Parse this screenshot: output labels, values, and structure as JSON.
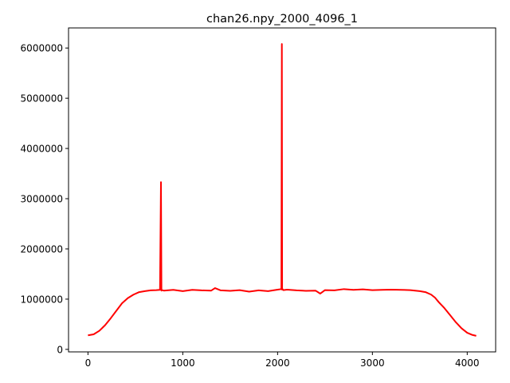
{
  "chart_data": {
    "type": "line",
    "title": "chan26.npy_2000_4096_1",
    "xlabel": "",
    "ylabel": "",
    "xlim": [
      -205,
      4300
    ],
    "ylim": [
      -50000,
      6400000
    ],
    "xticks": [
      0,
      1000,
      2000,
      3000,
      4000
    ],
    "xtick_labels": [
      "0",
      "1000",
      "2000",
      "3000",
      "4000"
    ],
    "yticks": [
      0,
      1000000,
      2000000,
      3000000,
      4000000,
      5000000,
      6000000
    ],
    "ytick_labels": [
      "0",
      "1000000",
      "2000000",
      "3000000",
      "4000000",
      "5000000",
      "6000000"
    ],
    "grid": false,
    "legend": "none",
    "series": [
      {
        "color": "#ff0000",
        "x": [
          0,
          60,
          120,
          180,
          240,
          300,
          360,
          420,
          480,
          540,
          600,
          660,
          720,
          760,
          770,
          775,
          780,
          800,
          900,
          1000,
          1100,
          1200,
          1300,
          1340,
          1400,
          1500,
          1600,
          1700,
          1800,
          1900,
          2000,
          2040,
          2045,
          2048,
          2052,
          2060,
          2100,
          2200,
          2300,
          2400,
          2450,
          2500,
          2600,
          2700,
          2800,
          2900,
          3000,
          3100,
          3200,
          3300,
          3400,
          3500,
          3560,
          3620,
          3660,
          3700,
          3760,
          3820,
          3880,
          3940,
          4000,
          4050,
          4095
        ],
        "y": [
          280000,
          300000,
          370000,
          480000,
          620000,
          770000,
          920000,
          1020000,
          1090000,
          1140000,
          1160000,
          1175000,
          1180000,
          1185000,
          3330000,
          1170000,
          1180000,
          1170000,
          1185000,
          1160000,
          1185000,
          1175000,
          1170000,
          1220000,
          1175000,
          1165000,
          1180000,
          1150000,
          1175000,
          1160000,
          1190000,
          1200000,
          6080000,
          1190000,
          1200000,
          1180000,
          1190000,
          1175000,
          1165000,
          1170000,
          1110000,
          1180000,
          1175000,
          1200000,
          1185000,
          1195000,
          1180000,
          1185000,
          1190000,
          1185000,
          1180000,
          1160000,
          1140000,
          1090000,
          1030000,
          940000,
          820000,
          680000,
          540000,
          420000,
          330000,
          290000,
          270000
        ]
      }
    ]
  }
}
